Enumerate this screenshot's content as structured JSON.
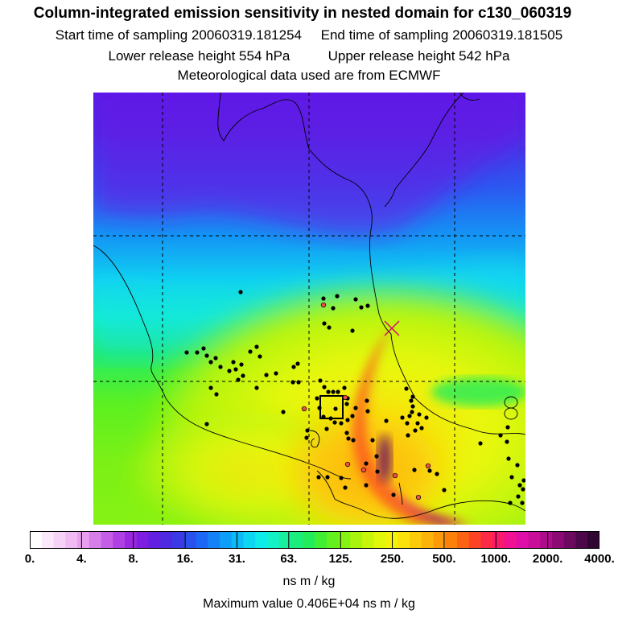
{
  "header": {
    "title": "Column-integrated emission sensitivity in nested domain for c130_060319",
    "start_label": "Start time of sampling 20060319.181254",
    "end_label": "End time of sampling 20060319.181505",
    "lower_label": "Lower release height  554 hPa",
    "upper_label": "Upper release height  542 hPa",
    "met_label": "Meteorological data used are from ECMWF"
  },
  "colorbar": {
    "ticks": [
      "0.",
      "4.",
      "8.",
      "16.",
      "31.",
      "63.",
      "125.",
      "250.",
      "500.",
      "1000.",
      "2000.",
      "4000."
    ],
    "units": "ns m / kg",
    "colors": [
      "#ffffff",
      "#fbe9fb",
      "#f6d2f6",
      "#f1baf3",
      "#e8a0ee",
      "#d77ee8",
      "#c55ee6",
      "#b040e4",
      "#9a28e0",
      "#7e1ee0",
      "#6420e0",
      "#4e2ae0",
      "#3a3ae6",
      "#2a50ee",
      "#1c68f4",
      "#1282f6",
      "#0e9ef8",
      "#0cbaf6",
      "#0cd6f2",
      "#0eecea",
      "#12f2c6",
      "#18f09e",
      "#1cee7c",
      "#22ec5a",
      "#40ee34",
      "#62f01e",
      "#86f214",
      "#a8f40e",
      "#c8f60a",
      "#e2f80a",
      "#f4f20a",
      "#fae20a",
      "#fccc0a",
      "#fcb40a",
      "#fc9a0a",
      "#fc800a",
      "#fc6414",
      "#fc4424",
      "#fc2a46",
      "#fa1a6c",
      "#f01292",
      "#e00ea8",
      "#c80e9a",
      "#ae0c8a",
      "#8c0a74",
      "#6c0a60",
      "#4c0848",
      "#300632"
    ]
  },
  "footer": {
    "max_value": "Maximum value  0.406E+04 ns m / kg"
  }
}
